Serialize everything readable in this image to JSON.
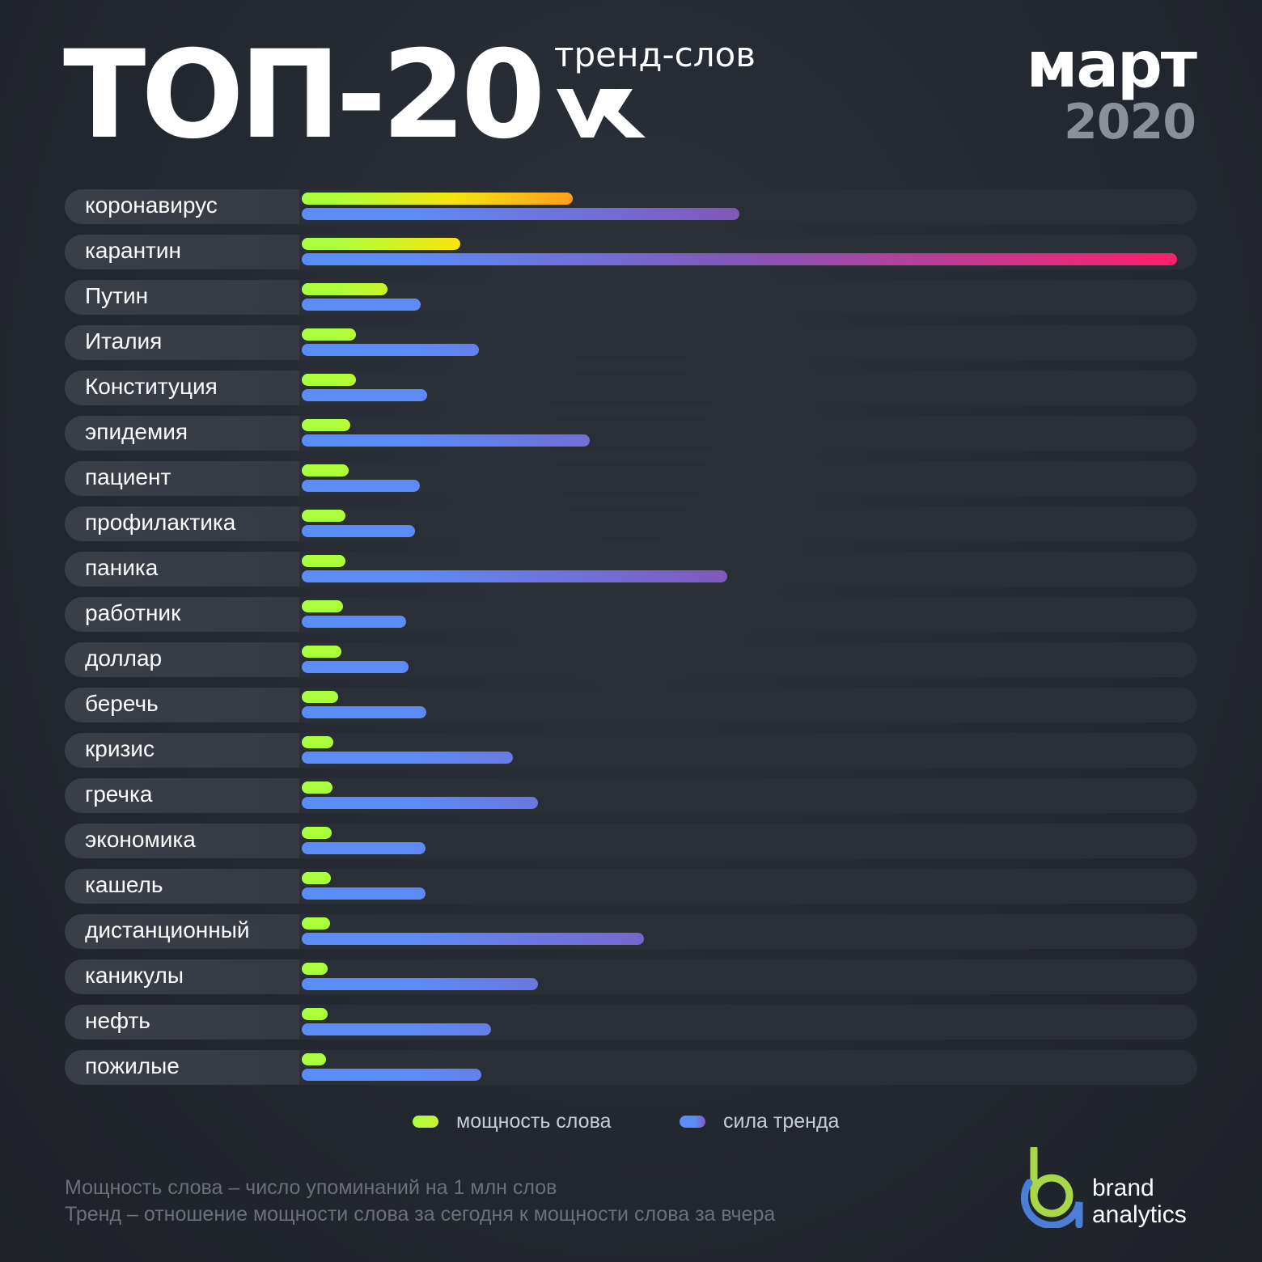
{
  "header": {
    "title": "ТОП-20",
    "subtitle": "тренд-слов",
    "month": "март",
    "year": "2020"
  },
  "icons": {
    "vk_logo": "vk-logo-icon",
    "brand_mark": "brand-analytics-logo-icon"
  },
  "colors": {
    "power_start": "#aaff3a",
    "power_end": "#ff9a1f",
    "trend_start": "#5b8dfa",
    "trend_mid": "#8257b8",
    "trend_end": "#ff1f6a"
  },
  "chart_data": {
    "type": "bar",
    "orientation": "horizontal",
    "categories": [
      "коронавирус",
      "карантин",
      "Путин",
      "Италия",
      "Конституция",
      "эпидемия",
      "пациент",
      "профилактика",
      "паника",
      "работник",
      "доллар",
      "беречь",
      "кризис",
      "гречка",
      "экономика",
      "кашель",
      "дистанционный",
      "каникулы",
      "нефть",
      "пожилые"
    ],
    "series": [
      {
        "name": "мощность слова",
        "values": [
          0.31,
          0.181,
          0.098,
          0.062,
          0.062,
          0.055,
          0.054,
          0.05,
          0.05,
          0.047,
          0.045,
          0.042,
          0.036,
          0.035,
          0.034,
          0.033,
          0.032,
          0.03,
          0.03,
          0.028
        ]
      },
      {
        "name": "сила тренда",
        "values": [
          0.5,
          1.0,
          0.136,
          0.202,
          0.143,
          0.329,
          0.135,
          0.129,
          0.486,
          0.119,
          0.122,
          0.142,
          0.241,
          0.27,
          0.141,
          0.141,
          0.391,
          0.27,
          0.216,
          0.205
        ]
      }
    ],
    "xlim": [
      0,
      1
    ],
    "legend": "bottom"
  },
  "legend": [
    {
      "label": "мощность слова"
    },
    {
      "label": "сила тренда"
    }
  ],
  "footnotes": [
    "Мощность слова – число упоминаний на 1 млн слов",
    "Тренд – отношение мощности слова  за сегодня к мощности слова за вчера"
  ],
  "brand": {
    "line1": "brand",
    "line2": "analytics"
  }
}
